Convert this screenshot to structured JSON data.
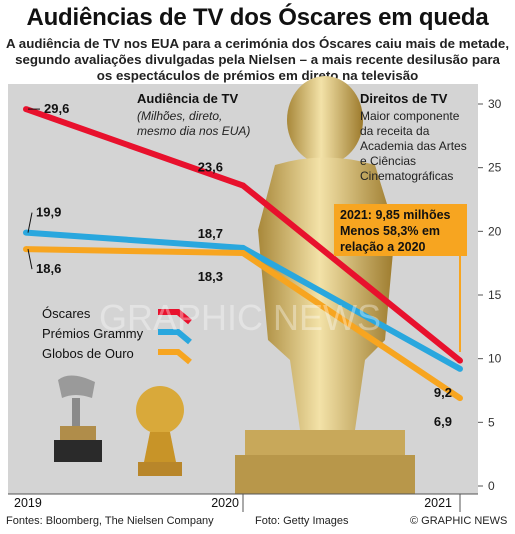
{
  "title": "Audiências de TV dos Óscares em queda",
  "subtitle": "A audiência de TV nos EUA para a cerimónia dos Óscares caiu mais de metade, segundo avaliações divulgadas pela Nielsen – a mais recente desilusão para os espectáculos de prémios em direto na televisão",
  "annotation_audience": {
    "heading": "Audiência de TV",
    "lines": [
      "(Milhões, direto,",
      "mesmo dia nos EUA)"
    ]
  },
  "annotation_rights": {
    "heading": "Direitos de TV",
    "lines": [
      "Maior componente",
      "da receita da",
      "Academia das Artes",
      "e Ciências",
      "Cinematográficas"
    ]
  },
  "callout": {
    "lines": [
      "2021: 9,85 milhões",
      "Menos 58,3% em",
      "relação a 2020"
    ],
    "color": "#f7a520"
  },
  "legend_items": [
    {
      "label": "Óscares",
      "color": "#e8112d"
    },
    {
      "label": "Prémios Grammy",
      "color": "#29a7de"
    },
    {
      "label": "Globos de Ouro",
      "color": "#f7a520"
    }
  ],
  "watermark": "GRAPHIC NEWS",
  "footer": {
    "sources": "Fontes: Bloomberg, The Nielsen Company",
    "photo": "Foto: Getty Images",
    "credit": "© GRAPHIC NEWS"
  },
  "chart_data": {
    "type": "line",
    "x": [
      "2019",
      "2020",
      "2021"
    ],
    "series": [
      {
        "name": "Óscares",
        "values": [
          29.6,
          23.6,
          9.85
        ],
        "labels": [
          "29,6",
          "23,6",
          ""
        ],
        "color": "#e8112d"
      },
      {
        "name": "Prémios Grammy",
        "values": [
          19.9,
          18.7,
          9.2
        ],
        "labels": [
          "19,9",
          "18,7",
          "9,2"
        ],
        "color": "#29a7de"
      },
      {
        "name": "Globos de Ouro",
        "values": [
          18.6,
          18.3,
          6.9
        ],
        "labels": [
          "18,6",
          "18,3",
          "6,9"
        ],
        "color": "#f7a520"
      }
    ],
    "ylim": [
      0,
      30
    ],
    "yticks": [
      0,
      5,
      10,
      15,
      20,
      25,
      30
    ],
    "ytick_labels": [
      "0",
      "5",
      "10",
      "15",
      "20",
      "25",
      "30"
    ],
    "y_axis_side": "right",
    "grid": false
  }
}
